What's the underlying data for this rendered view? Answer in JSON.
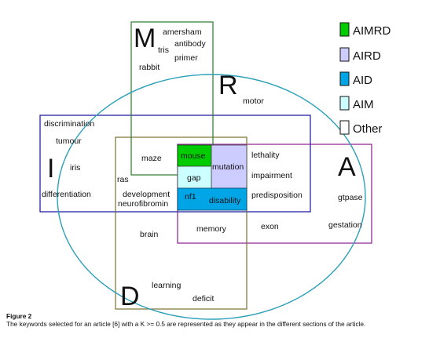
{
  "legend": [
    {
      "label": "AIMRD",
      "color": "#00cc00"
    },
    {
      "label": "AIRD",
      "color": "#ccccff"
    },
    {
      "label": "AID",
      "color": "#00a5e6"
    },
    {
      "label": "AIM",
      "color": "#ccffff"
    },
    {
      "label": "Other",
      "color": "#ffffff"
    }
  ],
  "sets": {
    "M": "M",
    "R": "R",
    "I": "I",
    "A": "A",
    "D": "D"
  },
  "keywords": {
    "amersham": "amersham",
    "antibody": "antibody",
    "tris": "tris",
    "primer": "primer",
    "rabbit": "rabbit",
    "motor": "motor",
    "discrimination": "discrimination",
    "tumour": "tumour",
    "iris": "iris",
    "differentiation": "differentiation",
    "maze": "maze",
    "ras": "ras",
    "development": "development",
    "neurofibromin": "neurofibromin",
    "brain": "brain",
    "learning": "learning",
    "deficit": "deficit",
    "mouse": "mouse",
    "mutation": "mutation",
    "gap": "gap",
    "nf1": "nf1",
    "disability": "disability",
    "lethality": "lethality",
    "impairment": "impairment",
    "predisposition": "predisposition",
    "memory": "memory",
    "exon": "exon",
    "gtpase": "gtpase",
    "gestation": "gestation"
  },
  "caption": {
    "title": "Figure 2",
    "text": "The keywords selected for an article [6] with a K >= 0.5 are represented as they appear in the different sections of the article."
  }
}
